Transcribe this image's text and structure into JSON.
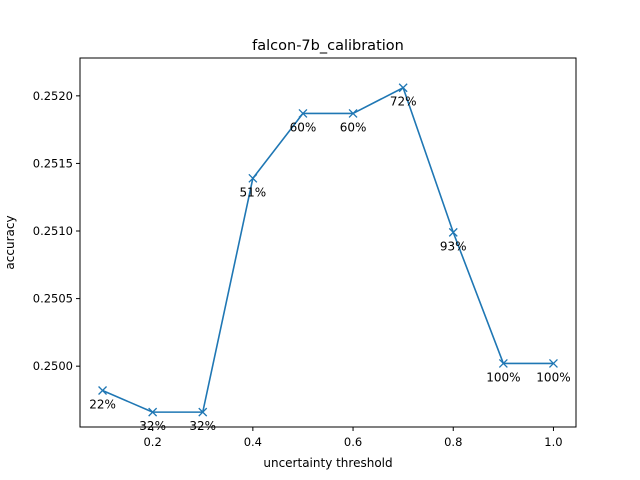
{
  "chart_data": {
    "type": "line",
    "title": "falcon-7b_calibration",
    "xlabel": "uncertainty threshold",
    "ylabel": "accuracy",
    "xlim": [
      0.055,
      1.045
    ],
    "ylim": [
      0.24955,
      0.25228
    ],
    "xticks": [
      0.2,
      0.4,
      0.6,
      0.8,
      1.0
    ],
    "xtick_labels": [
      "0.2",
      "0.4",
      "0.6",
      "0.8",
      "1.0"
    ],
    "yticks": [
      0.25,
      0.2505,
      0.251,
      0.2515,
      0.252
    ],
    "ytick_labels": [
      "0.2500",
      "0.2505",
      "0.2510",
      "0.2515",
      "0.2520"
    ],
    "grid": false,
    "marker": "x",
    "color": "#1f77b4",
    "series": [
      {
        "x": [
          0.1,
          0.2,
          0.3,
          0.4,
          0.5,
          0.6,
          0.7,
          0.8,
          0.9,
          1.0
        ],
        "y": [
          0.24982,
          0.24966,
          0.24966,
          0.25139,
          0.25187,
          0.25187,
          0.25206,
          0.25099,
          0.25002,
          0.25002
        ],
        "labels": [
          "22%",
          "32%",
          "32%",
          "51%",
          "60%",
          "60%",
          "72%",
          "93%",
          "100%",
          "100%"
        ]
      }
    ]
  }
}
